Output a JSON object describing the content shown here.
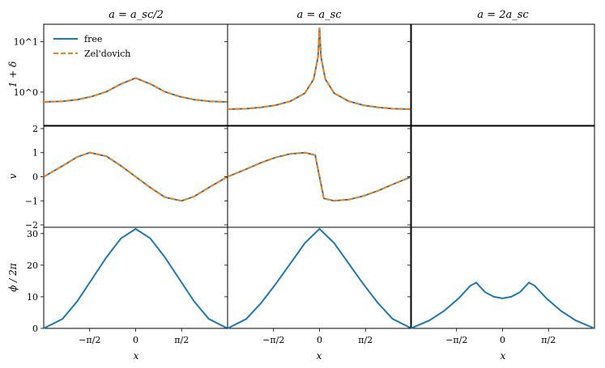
{
  "colors": {
    "free": "#1f77b4",
    "zeldovich": "#ff7f0e"
  },
  "column_titles": [
    "a = a_sc/2",
    "a = a_sc",
    "a = 2a_sc"
  ],
  "legend": {
    "free": "free",
    "zeldovich": "Zel'dovich"
  },
  "chart_data": [
    {
      "type": "line",
      "row": "density",
      "ylabel": "1 + δ",
      "yscale": "log",
      "ylim": [
        0.22,
        22
      ],
      "ytick_labels": [
        "10^0",
        "10^1"
      ],
      "xlim": [
        -3.1416,
        3.1416
      ],
      "series": [
        {
          "name": "free",
          "column": "a_sc/2",
          "x": [
            -3.14,
            -2.5,
            -2.0,
            -1.5,
            -1.0,
            -0.5,
            0,
            0.5,
            1.0,
            1.5,
            2.0,
            2.5,
            3.14
          ],
          "y": [
            0.64,
            0.66,
            0.71,
            0.82,
            1.02,
            1.45,
            1.9,
            1.45,
            1.02,
            0.82,
            0.71,
            0.66,
            0.64
          ]
        },
        {
          "name": "Zel'dovich",
          "column": "a_sc/2",
          "x": [
            -3.14,
            -2.5,
            -2.0,
            -1.5,
            -1.0,
            -0.5,
            0,
            0.5,
            1.0,
            1.5,
            2.0,
            2.5,
            3.14
          ],
          "y": [
            0.64,
            0.66,
            0.71,
            0.82,
            1.02,
            1.45,
            1.9,
            1.45,
            1.02,
            0.82,
            0.71,
            0.66,
            0.64
          ]
        },
        {
          "name": "free",
          "column": "a_sc",
          "x": [
            -3.14,
            -2.5,
            -2.0,
            -1.5,
            -1.0,
            -0.5,
            -0.2,
            -0.05,
            0,
            0.05,
            0.2,
            0.5,
            1.0,
            1.5,
            2.0,
            2.5,
            3.14
          ],
          "y": [
            0.46,
            0.47,
            0.5,
            0.55,
            0.66,
            0.95,
            1.8,
            5.0,
            19.0,
            5.0,
            1.8,
            0.95,
            0.66,
            0.55,
            0.5,
            0.47,
            0.46
          ]
        },
        {
          "name": "Zel'dovich",
          "column": "a_sc",
          "x": [
            -3.14,
            -2.5,
            -2.0,
            -1.5,
            -1.0,
            -0.5,
            -0.2,
            -0.05,
            0,
            0.05,
            0.2,
            0.5,
            1.0,
            1.5,
            2.0,
            2.5,
            3.14
          ],
          "y": [
            0.46,
            0.47,
            0.5,
            0.55,
            0.66,
            0.95,
            1.8,
            5.0,
            19.0,
            5.0,
            1.8,
            0.95,
            0.66,
            0.55,
            0.5,
            0.47,
            0.46
          ]
        }
      ]
    },
    {
      "type": "line",
      "row": "velocity",
      "ylabel": "v",
      "ylim": [
        -2.1,
        2.1
      ],
      "ytick_labels": [
        "−2",
        "−1",
        "0",
        "1",
        "2"
      ],
      "xlim": [
        -3.1416,
        3.1416
      ],
      "series": [
        {
          "name": "free",
          "column": "a_sc/2",
          "x": [
            -3.14,
            -2.5,
            -2.0,
            -1.57,
            -1.0,
            -0.5,
            0,
            0.5,
            1.0,
            1.57,
            2.0,
            2.5,
            3.14
          ],
          "y": [
            0.0,
            0.45,
            0.82,
            1.0,
            0.85,
            0.45,
            0.0,
            -0.45,
            -0.85,
            -1.0,
            -0.82,
            -0.45,
            0.0
          ]
        },
        {
          "name": "Zel'dovich",
          "column": "a_sc/2",
          "x": [
            -3.14,
            -2.5,
            -2.0,
            -1.57,
            -1.0,
            -0.5,
            0,
            0.5,
            1.0,
            1.57,
            2.0,
            2.5,
            3.14
          ],
          "y": [
            0.0,
            0.45,
            0.82,
            1.0,
            0.85,
            0.45,
            0.0,
            -0.45,
            -0.85,
            -1.0,
            -0.82,
            -0.45,
            0.0
          ]
        },
        {
          "name": "free",
          "column": "a_sc",
          "x": [
            -3.14,
            -2.5,
            -2.0,
            -1.5,
            -1.0,
            -0.5,
            -0.15,
            0,
            0.15,
            0.5,
            1.0,
            1.5,
            2.0,
            2.5,
            3.14
          ],
          "y": [
            0.0,
            0.32,
            0.58,
            0.8,
            0.95,
            1.0,
            0.9,
            0.0,
            -0.9,
            -1.0,
            -0.95,
            -0.8,
            -0.58,
            -0.32,
            0.0
          ]
        },
        {
          "name": "Zel'dovich",
          "column": "a_sc",
          "x": [
            -3.14,
            -2.5,
            -2.0,
            -1.5,
            -1.0,
            -0.5,
            -0.15,
            0,
            0.15,
            0.5,
            1.0,
            1.5,
            2.0,
            2.5,
            3.14
          ],
          "y": [
            0.0,
            0.32,
            0.58,
            0.8,
            0.95,
            1.0,
            0.9,
            0.0,
            -0.9,
            -1.0,
            -0.95,
            -0.8,
            -0.58,
            -0.32,
            0.0
          ]
        }
      ]
    },
    {
      "type": "line",
      "row": "potential",
      "ylabel": "ϕ / 2π",
      "ylim": [
        0,
        32
      ],
      "ytick_labels": [
        "0",
        "10",
        "20",
        "30"
      ],
      "xlabel": "x",
      "xtick_labels": [
        "−π/2",
        "0",
        "π/2"
      ],
      "xlim": [
        -3.1416,
        3.1416
      ],
      "series": [
        {
          "name": "free",
          "column": "a_sc/2",
          "x": [
            -3.14,
            -2.5,
            -2.0,
            -1.5,
            -1.0,
            -0.5,
            0,
            0.5,
            1.0,
            1.5,
            2.0,
            2.5,
            3.14
          ],
          "y": [
            0.0,
            3.0,
            8.5,
            15.5,
            22.5,
            28.5,
            31.5,
            28.5,
            22.5,
            15.5,
            8.5,
            3.0,
            0.0
          ]
        },
        {
          "name": "free",
          "column": "a_sc",
          "x": [
            -3.14,
            -2.5,
            -2.0,
            -1.5,
            -1.0,
            -0.5,
            0,
            0.5,
            1.0,
            1.5,
            2.0,
            2.5,
            3.14
          ],
          "y": [
            0.0,
            3.0,
            8.0,
            14.0,
            20.5,
            27.0,
            31.5,
            27.0,
            20.5,
            14.0,
            8.0,
            3.0,
            0.0
          ]
        },
        {
          "name": "free",
          "column": "2a_sc",
          "x": [
            -3.14,
            -2.5,
            -2.0,
            -1.5,
            -1.1,
            -0.9,
            -0.6,
            -0.3,
            0,
            0.3,
            0.6,
            0.9,
            1.1,
            1.5,
            2.0,
            2.5,
            3.14
          ],
          "y": [
            0.0,
            2.5,
            5.5,
            9.5,
            13.5,
            14.5,
            11.5,
            10.0,
            9.5,
            10.0,
            11.5,
            14.5,
            13.5,
            9.5,
            5.5,
            2.5,
            0.0
          ]
        }
      ]
    }
  ]
}
